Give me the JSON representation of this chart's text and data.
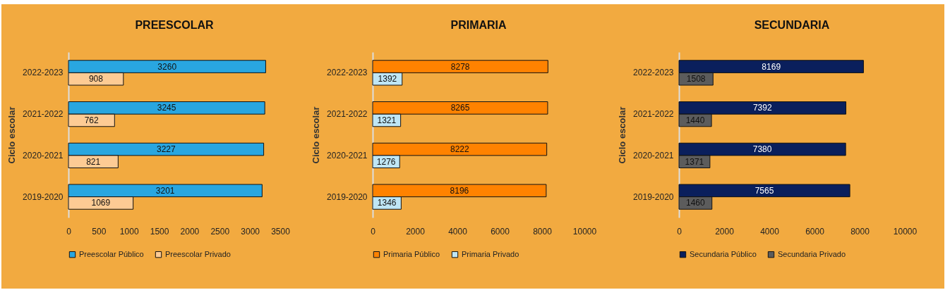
{
  "chart_data": [
    {
      "type": "bar",
      "orientation": "horizontal",
      "title": "PREESCOLAR",
      "ylabel": "Ciclo escolar",
      "categories": [
        "2022-2023",
        "2021-2022",
        "2020-2021",
        "2019-2020"
      ],
      "series": [
        {
          "name": "Preescolar Público",
          "color": "#29a6e0",
          "values": [
            3260,
            3245,
            3227,
            3201
          ]
        },
        {
          "name": "Preescolar Privado",
          "color": "#fdcb94",
          "values": [
            908,
            762,
            821,
            1069
          ]
        }
      ],
      "xlim": [
        0,
        3500
      ],
      "xticks": [
        0,
        500,
        1000,
        1500,
        2000,
        2500,
        3000,
        3500
      ],
      "data_labels": true,
      "grid": false,
      "legend": "bottom"
    },
    {
      "type": "bar",
      "orientation": "horizontal",
      "title": "PRIMARIA",
      "ylabel": "Ciclo escolar",
      "categories": [
        "2022-2023",
        "2021-2022",
        "2020-2021",
        "2019-2020"
      ],
      "series": [
        {
          "name": "Primaria Público",
          "color": "#ff8200",
          "values": [
            8278,
            8265,
            8222,
            8196
          ]
        },
        {
          "name": "Primaria Privado",
          "color": "#bfe6f5",
          "values": [
            1392,
            1321,
            1276,
            1346
          ]
        }
      ],
      "xlim": [
        0,
        10000
      ],
      "xticks": [
        0,
        2000,
        4000,
        6000,
        8000,
        10000
      ],
      "data_labels": true,
      "grid": false,
      "legend": "bottom"
    },
    {
      "type": "bar",
      "orientation": "horizontal",
      "title": "SECUNDARIA",
      "ylabel": "Ciclo escolar",
      "categories": [
        "2022-2023",
        "2021-2022",
        "2020-2021",
        "2019-2020"
      ],
      "series": [
        {
          "name": "Secundaria Público",
          "color": "#0a1f5c",
          "values": [
            8169,
            7392,
            7380,
            7565
          ]
        },
        {
          "name": "Secundaria Privado",
          "color": "#5c5c5c",
          "values": [
            1508,
            1440,
            1371,
            1460
          ]
        }
      ],
      "xlim": [
        0,
        10000
      ],
      "xticks": [
        0,
        2000,
        4000,
        6000,
        8000,
        10000
      ],
      "data_labels": true,
      "grid": false,
      "legend": "bottom"
    }
  ]
}
